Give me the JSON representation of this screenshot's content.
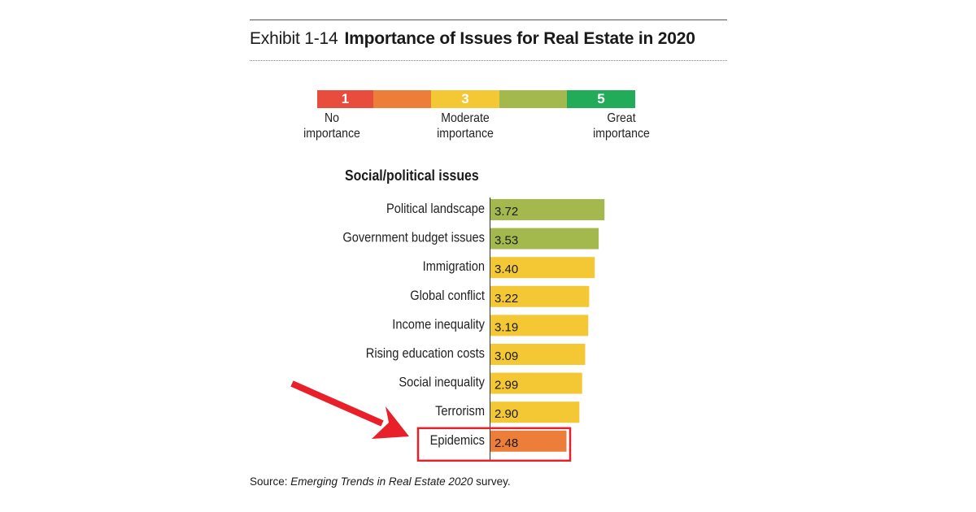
{
  "exhibit_label": "Exhibit 1-14",
  "title": "Importance of Issues for Real Estate in 2020",
  "scale_legend": {
    "segments": [
      {
        "label": "1",
        "color": "#e84c3d"
      },
      {
        "label": "",
        "color": "#ec7e3a"
      },
      {
        "label": "3",
        "color": "#f4c835"
      },
      {
        "label": "",
        "color": "#a3b94e"
      },
      {
        "label": "5",
        "color": "#22ab58"
      }
    ],
    "labels": [
      {
        "line1": "No",
        "line2": "importance"
      },
      {
        "line1": "Moderate",
        "line2": "importance"
      },
      {
        "line1": "Great",
        "line2": "importance"
      }
    ]
  },
  "source": {
    "prefix": "Source: ",
    "italic": "Emerging Trends in Real Estate 2020",
    "suffix": " survey."
  },
  "annotation": {
    "highlighted_item": "Epidemics",
    "color": "#e8202a"
  },
  "chart_data": {
    "type": "bar",
    "orientation": "horizontal",
    "title": "Importance of Issues for Real Estate in 2020",
    "subtitle": "Social/political issues",
    "xlabel": "",
    "ylabel": "",
    "scale": [
      1,
      5
    ],
    "categories": [
      "Political landscape",
      "Government budget issues",
      "Immigration",
      "Global conflict",
      "Income inequality",
      "Rising education costs",
      "Social inequality",
      "Terrorism",
      "Epidemics"
    ],
    "values": [
      3.72,
      3.53,
      3.4,
      3.22,
      3.19,
      3.09,
      2.99,
      2.9,
      2.48
    ],
    "value_labels": [
      "3.72",
      "3.53",
      "3.40",
      "3.22",
      "3.19",
      "3.09",
      "2.99",
      "2.90",
      "2.48"
    ],
    "bar_colors": [
      "#a3b94e",
      "#a3b94e",
      "#f4c835",
      "#f4c835",
      "#f4c835",
      "#f4c835",
      "#f4c835",
      "#f4c835",
      "#ec7e3a"
    ],
    "grid": false,
    "legend": "top-center"
  }
}
